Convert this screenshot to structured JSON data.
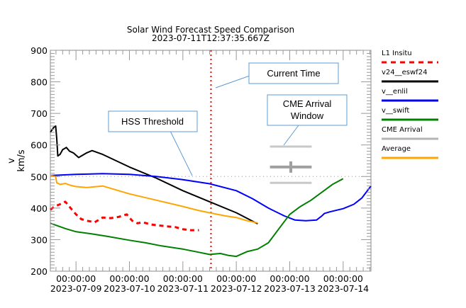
{
  "chart_data": {
    "type": "line",
    "title": "Solar Wind Forecast Speed Comparison",
    "subtitle": "2023-07-11T12:37:35.667Z",
    "xlabel": "",
    "ylabel": "v",
    "ylabel_units": "km/s",
    "x_units": "days since 2023-07-09T00:00:00",
    "xlim": [
      -0.48,
      5.52
    ],
    "ylim": [
      200,
      900
    ],
    "yticks": [
      200,
      300,
      400,
      500,
      600,
      700,
      800,
      900
    ],
    "xticks": [
      {
        "x": 0,
        "time": "00:00:00",
        "date": "2023-07-09"
      },
      {
        "x": 1,
        "time": "00:00:00",
        "date": "2023-07-10"
      },
      {
        "x": 2,
        "time": "00:00:00",
        "date": "2023-07-11"
      },
      {
        "x": 3,
        "time": "00:00:00",
        "date": "2023-07-12"
      },
      {
        "x": 4,
        "time": "00:00:00",
        "date": "2023-07-13"
      },
      {
        "x": 5,
        "time": "00:00:00",
        "date": "2023-07-14"
      }
    ],
    "grid": false,
    "legend_position": "right",
    "series": [
      {
        "name": "L1 Insitu",
        "color": "#ff0000",
        "style": "dashed",
        "x": [
          -0.48,
          -0.4,
          -0.3,
          -0.2,
          -0.1,
          0.0,
          0.1,
          0.2,
          0.35,
          0.5,
          0.65,
          0.8,
          0.95,
          1.05,
          1.15,
          1.25,
          1.4,
          1.55,
          1.7,
          1.85,
          2.0,
          2.15,
          2.3
        ],
        "y": [
          395,
          405,
          412,
          420,
          400,
          380,
          365,
          360,
          355,
          370,
          368,
          372,
          380,
          360,
          352,
          355,
          348,
          345,
          342,
          340,
          333,
          330,
          330
        ]
      },
      {
        "name": "v24__eswf24",
        "color": "#000000",
        "style": "solid",
        "x": [
          -0.48,
          -0.42,
          -0.38,
          -0.36,
          -0.34,
          -0.3,
          -0.25,
          -0.18,
          -0.12,
          -0.05,
          0.05,
          0.2,
          0.3,
          0.5,
          1.0,
          1.5,
          2.0,
          2.5,
          3.0,
          3.4
        ],
        "y": [
          640,
          655,
          660,
          620,
          565,
          570,
          585,
          592,
          580,
          575,
          560,
          575,
          582,
          570,
          530,
          495,
          455,
          420,
          385,
          350
        ]
      },
      {
        "name": "v__enlil",
        "color": "#0000ff",
        "style": "solid",
        "x": [
          -0.48,
          0.0,
          0.5,
          1.0,
          1.5,
          2.0,
          2.5,
          3.0,
          3.3,
          3.6,
          3.9,
          4.1,
          4.3,
          4.5,
          4.6,
          4.65,
          4.75,
          5.0,
          5.2,
          5.35,
          5.52
        ],
        "y": [
          503,
          507,
          509,
          507,
          500,
          490,
          477,
          455,
          430,
          400,
          375,
          362,
          360,
          362,
          375,
          383,
          388,
          398,
          412,
          432,
          470
        ]
      },
      {
        "name": "v__swift",
        "color": "#008000",
        "style": "solid",
        "x": [
          -0.48,
          -0.2,
          0.0,
          0.3,
          0.6,
          1.0,
          1.3,
          1.6,
          2.0,
          2.3,
          2.5,
          2.7,
          2.85,
          3.0,
          3.2,
          3.4,
          3.6,
          3.8,
          4.0,
          4.2,
          4.4,
          4.6,
          4.8,
          5.0
        ],
        "y": [
          352,
          335,
          325,
          318,
          310,
          298,
          290,
          280,
          270,
          260,
          253,
          256,
          250,
          247,
          262,
          270,
          290,
          335,
          380,
          405,
          425,
          450,
          475,
          493
        ]
      },
      {
        "name": "CME Arrival",
        "color": "#b4b4b4",
        "style": "solid",
        "x": [],
        "y": []
      },
      {
        "name": "Average",
        "color": "#ffa500",
        "style": "solid",
        "x": [
          -0.48,
          -0.38,
          -0.36,
          -0.3,
          -0.2,
          -0.1,
          0.0,
          0.2,
          0.5,
          1.0,
          1.5,
          2.0,
          2.3,
          2.5,
          2.8,
          3.0,
          3.2,
          3.4
        ],
        "y": [
          503,
          500,
          480,
          475,
          478,
          472,
          468,
          465,
          470,
          445,
          425,
          405,
          392,
          385,
          375,
          370,
          360,
          353
        ]
      }
    ],
    "reference_lines": {
      "hss_threshold": {
        "y": 500,
        "color": "#999999",
        "style": "dotted"
      },
      "current_time": {
        "x": 2.526,
        "color": "#ff0000",
        "style": "dotted"
      }
    },
    "cme_arrival_window": {
      "x_start": 3.63,
      "x_end": 4.41,
      "x_center": 4.02,
      "upper": 595,
      "center": 530,
      "lower": 480,
      "color_outer": "#c8c8c8",
      "color_center": "#a0a0a0"
    },
    "annotations": [
      {
        "label": "Current Time",
        "points_to": "current-time-line"
      },
      {
        "label": "CME Arrival Window",
        "lines": [
          "CME Arrival",
          "Window"
        ],
        "points_to": "cme-arrival-window"
      },
      {
        "label": "HSS Threshold",
        "points_to": "hss-threshold-line"
      }
    ]
  }
}
